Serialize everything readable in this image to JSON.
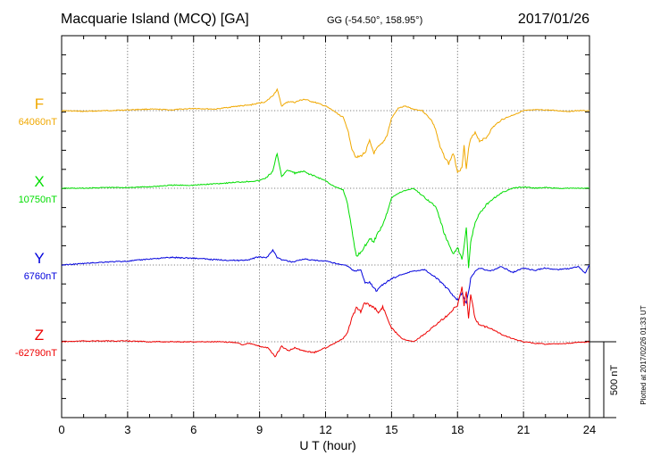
{
  "header": {
    "station": "Macquarie Island (MCQ)  [GA]",
    "coords": "GG (-54.50°, 158.95°)",
    "date": "2017/01/26"
  },
  "side_note": "Plotted at 2017/02/26 01:33 UT",
  "scale_label": "500 nT",
  "colors": {
    "F": "#f0a800",
    "X": "#00dd00",
    "Y": "#0000dd",
    "Z": "#ee0000"
  },
  "chart_data": {
    "type": "line",
    "xlabel": "U T (hour)",
    "xlim": [
      0,
      24
    ],
    "xticks": [
      "0",
      "3",
      "6",
      "9",
      "12",
      "15",
      "18",
      "21",
      "24"
    ],
    "grid": true,
    "scale_bar_nT": 500,
    "series": [
      {
        "name": "F",
        "baseline_label": "64060nT",
        "x": [
          0,
          1,
          2,
          3,
          4,
          5,
          6,
          7,
          7.5,
          8,
          8.5,
          9,
          9.3,
          9.6,
          9.8,
          10,
          10.3,
          10.6,
          11,
          11.5,
          12,
          12.4,
          12.8,
          13,
          13.2,
          13.4,
          13.6,
          13.8,
          14,
          14.2,
          14.4,
          14.6,
          14.8,
          15,
          15.3,
          15.6,
          16,
          16.4,
          16.8,
          17,
          17.2,
          17.4,
          17.6,
          17.8,
          18,
          18.2,
          18.3,
          18.4,
          18.5,
          18.6,
          18.8,
          19,
          19.3,
          19.6,
          20,
          20.5,
          21,
          21.5,
          22,
          22.5,
          23,
          23.5,
          24
        ],
        "values": [
          0,
          -5,
          0,
          5,
          10,
          5,
          15,
          10,
          20,
          30,
          35,
          50,
          60,
          100,
          140,
          30,
          60,
          55,
          75,
          55,
          30,
          -5,
          -45,
          -120,
          -250,
          -310,
          -300,
          -275,
          -200,
          -280,
          -240,
          -215,
          -160,
          -50,
          15,
          30,
          10,
          0,
          -60,
          -120,
          -240,
          -300,
          -350,
          -280,
          -400,
          -380,
          -220,
          -390,
          -250,
          -190,
          -140,
          -200,
          -180,
          -110,
          -60,
          -30,
          0,
          5,
          5,
          0,
          -5,
          0,
          0
        ]
      },
      {
        "name": "X",
        "baseline_label": "10750nT",
        "x": [
          0,
          1,
          2,
          3,
          4,
          5,
          6,
          7,
          8,
          8.5,
          9,
          9.3,
          9.6,
          9.8,
          10,
          10.3,
          10.6,
          11,
          11.5,
          12,
          12.4,
          12.8,
          13,
          13.2,
          13.4,
          13.6,
          13.8,
          14,
          14.2,
          14.4,
          14.6,
          14.8,
          15,
          15.5,
          16,
          16.5,
          17,
          17.2,
          17.4,
          17.6,
          17.8,
          18,
          18.2,
          18.3,
          18.4,
          18.5,
          18.6,
          18.8,
          19,
          19.3,
          19.6,
          20,
          20.5,
          21,
          21.5,
          22,
          22.5,
          23,
          23.5,
          24
        ],
        "values": [
          0,
          0,
          5,
          5,
          10,
          20,
          20,
          30,
          40,
          45,
          50,
          70,
          110,
          230,
          80,
          120,
          100,
          110,
          80,
          50,
          10,
          -10,
          -100,
          -280,
          -450,
          -420,
          -380,
          -330,
          -350,
          -290,
          -240,
          -160,
          -60,
          -20,
          0,
          -60,
          -120,
          -200,
          -300,
          -370,
          -430,
          -390,
          -470,
          -380,
          -250,
          -520,
          -350,
          -220,
          -170,
          -110,
          -70,
          -30,
          0,
          10,
          0,
          5,
          0,
          0,
          0,
          0
        ]
      },
      {
        "name": "Y",
        "baseline_label": "6760nT",
        "x": [
          0,
          1,
          2,
          3,
          4,
          5,
          6,
          7,
          8,
          8.5,
          9,
          9.3,
          9.6,
          9.8,
          10,
          10.5,
          11,
          11.5,
          12,
          12.5,
          13,
          13.3,
          13.6,
          13.8,
          14,
          14.3,
          14.6,
          15,
          15.5,
          16,
          16.5,
          17,
          17.5,
          18,
          18.2,
          18.4,
          18.5,
          18.6,
          18.8,
          19,
          19.5,
          20,
          20.5,
          21,
          21.5,
          22,
          22.5,
          23,
          23.5,
          23.8,
          24
        ],
        "values": [
          0,
          10,
          20,
          25,
          40,
          50,
          45,
          35,
          30,
          35,
          55,
          45,
          100,
          50,
          35,
          20,
          40,
          30,
          25,
          10,
          -5,
          -40,
          -30,
          -120,
          -110,
          -170,
          -130,
          -90,
          -60,
          -40,
          -30,
          -80,
          -150,
          -230,
          -190,
          -250,
          -180,
          -90,
          -40,
          -20,
          -40,
          -10,
          -50,
          -20,
          -35,
          -20,
          -30,
          -25,
          -10,
          -55,
          0
        ]
      },
      {
        "name": "Z",
        "baseline_label": "-62790nT",
        "x": [
          0,
          1,
          2,
          3,
          4,
          5,
          6,
          7,
          8,
          8.2,
          8.5,
          9,
          9.4,
          9.7,
          10,
          10.3,
          10.6,
          11,
          11.5,
          12,
          12.4,
          12.8,
          13,
          13.2,
          13.4,
          13.6,
          13.8,
          14,
          14.2,
          14.4,
          14.6,
          14.8,
          15,
          15.5,
          16,
          16.5,
          17,
          17.5,
          18,
          18.2,
          18.3,
          18.4,
          18.5,
          18.6,
          18.8,
          19,
          19.5,
          20,
          20.5,
          21,
          21.5,
          22,
          22.5,
          23,
          23.5,
          24
        ],
        "values": [
          0,
          5,
          5,
          5,
          0,
          0,
          0,
          0,
          -5,
          -20,
          -10,
          -30,
          -40,
          -100,
          -30,
          -60,
          -40,
          -60,
          -70,
          -40,
          -10,
          20,
          60,
          160,
          220,
          200,
          260,
          240,
          230,
          190,
          230,
          160,
          90,
          20,
          0,
          50,
          110,
          170,
          240,
          360,
          230,
          340,
          160,
          310,
          150,
          110,
          90,
          50,
          20,
          0,
          -10,
          -15,
          -15,
          -10,
          -5,
          0
        ]
      }
    ]
  }
}
